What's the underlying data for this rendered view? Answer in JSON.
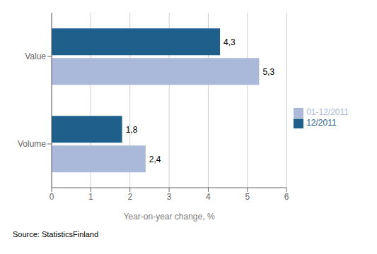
{
  "chart_data": {
    "type": "bar",
    "orientation": "horizontal",
    "categories": [
      "Value",
      "Volume"
    ],
    "series": [
      {
        "name": "12/2011",
        "color": "#1f5f8b",
        "values": [
          4.3,
          1.8
        ],
        "value_labels": [
          "4,3",
          "1,8"
        ]
      },
      {
        "name": "01-12/2011",
        "color": "#aab9d9",
        "values": [
          5.3,
          2.4
        ],
        "value_labels": [
          "5,3",
          "2,4"
        ]
      }
    ],
    "xlabel": "Year-on-year change, %",
    "xlim": [
      0,
      6
    ],
    "xticks": [
      0,
      1,
      2,
      3,
      4,
      5,
      6
    ],
    "grid": true,
    "legend": "right",
    "data_labels": true,
    "annotations": [
      "Source: StatisticsFinland"
    ]
  }
}
